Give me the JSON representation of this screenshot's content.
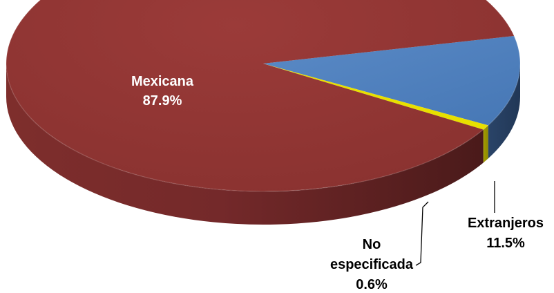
{
  "chart_data": {
    "type": "pie",
    "three_d": true,
    "slices": [
      {
        "label": "Mexicana",
        "value": 87.9,
        "value_text": "87.9%",
        "color": "#953735"
      },
      {
        "label": "Extranjeros",
        "value": 11.5,
        "value_text": "11.5%",
        "color": "#4f81bd"
      },
      {
        "label": "No especificada",
        "label_lines": [
          "No",
          "especificada"
        ],
        "value": 0.6,
        "value_text": "0.6%",
        "color": "#e8e000"
      }
    ],
    "label_colors": {
      "inside": "#ffffff",
      "outside": "#000000"
    }
  }
}
